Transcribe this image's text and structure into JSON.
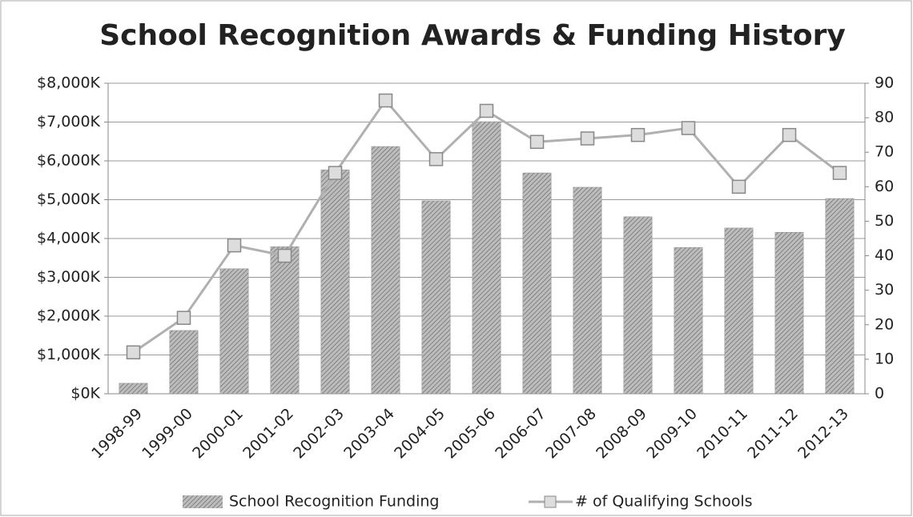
{
  "chart_data": {
    "type": "bar-line",
    "title": "School Recognition Awards & Funding History",
    "categories": [
      "1998-99",
      "1999-00",
      "2000-01",
      "2001-02",
      "2002-03",
      "2003-04",
      "2004-05",
      "2005-06",
      "2006-07",
      "2007-08",
      "2008-09",
      "2009-10",
      "2010-11",
      "2011-12",
      "2012-13"
    ],
    "series": [
      {
        "name": "School Recognition Funding",
        "type": "bar",
        "color": "#8c8c8c",
        "values": [
          270,
          1630,
          3220,
          3790,
          5770,
          6370,
          4970,
          7010,
          5690,
          5320,
          4560,
          3770,
          4270,
          4160,
          5030
        ]
      },
      {
        "name": "# of Qualifying Schools",
        "type": "line",
        "axis": "y2",
        "color": "#b0b0b0",
        "values": [
          12,
          22,
          43,
          40,
          64,
          85,
          68,
          82,
          73,
          74,
          75,
          77,
          60,
          75,
          64
        ]
      }
    ],
    "ylim": [
      0,
      8000
    ],
    "yticks": [
      {
        "value": 0,
        "label": "$0K"
      },
      {
        "value": 1000,
        "label": "$1,000K"
      },
      {
        "value": 2000,
        "label": "$2,000K"
      },
      {
        "value": 3000,
        "label": "$3,000K"
      },
      {
        "value": 4000,
        "label": "$4,000K"
      },
      {
        "value": 5000,
        "label": "$5,000K"
      },
      {
        "value": 6000,
        "label": "$6,000K"
      },
      {
        "value": 7000,
        "label": "$7,000K"
      },
      {
        "value": 8000,
        "label": "$8,000K"
      }
    ],
    "y2lim": [
      0,
      90
    ],
    "y2ticks": [
      0,
      10,
      20,
      30,
      40,
      50,
      60,
      70,
      80,
      90
    ],
    "grid": true,
    "legend": "bottom"
  }
}
